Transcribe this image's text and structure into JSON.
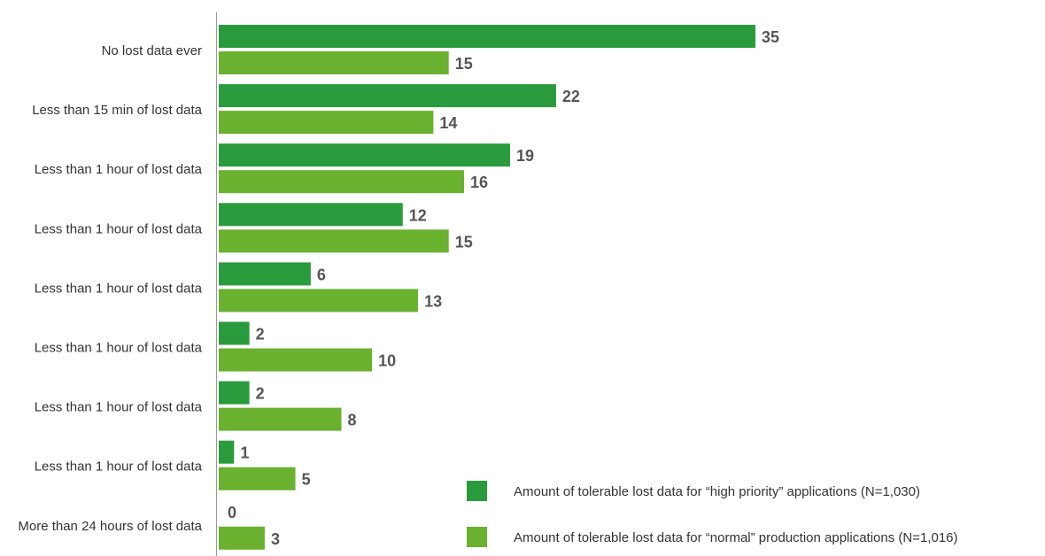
{
  "chart_data": {
    "type": "bar",
    "orientation": "horizontal",
    "categories": [
      "No lost data ever",
      "Less than 15 min of lost data",
      "Less than 1 hour of lost data",
      "Less than 1 hour of lost data",
      "Less than 1 hour of lost data",
      "Less than 1 hour of lost data",
      "Less than 1 hour of lost data",
      "Less than 1 hour of lost data",
      "More than 24 hours of lost data"
    ],
    "series": [
      {
        "name": "Amount of tolerable lost data for “high priority” applications (N=1,030)",
        "color": "#2a9b3c",
        "values": [
          35,
          22,
          19,
          12,
          6,
          2,
          2,
          1,
          0
        ]
      },
      {
        "name": "Amount of tolerable lost data for “normal” production applications (N=1,016)",
        "color": "#6ab130",
        "values": [
          15,
          14,
          16,
          15,
          13,
          10,
          8,
          5,
          3
        ]
      }
    ],
    "xlim": [
      0,
      35
    ],
    "grid": false,
    "legend_position": "bottom-right"
  }
}
